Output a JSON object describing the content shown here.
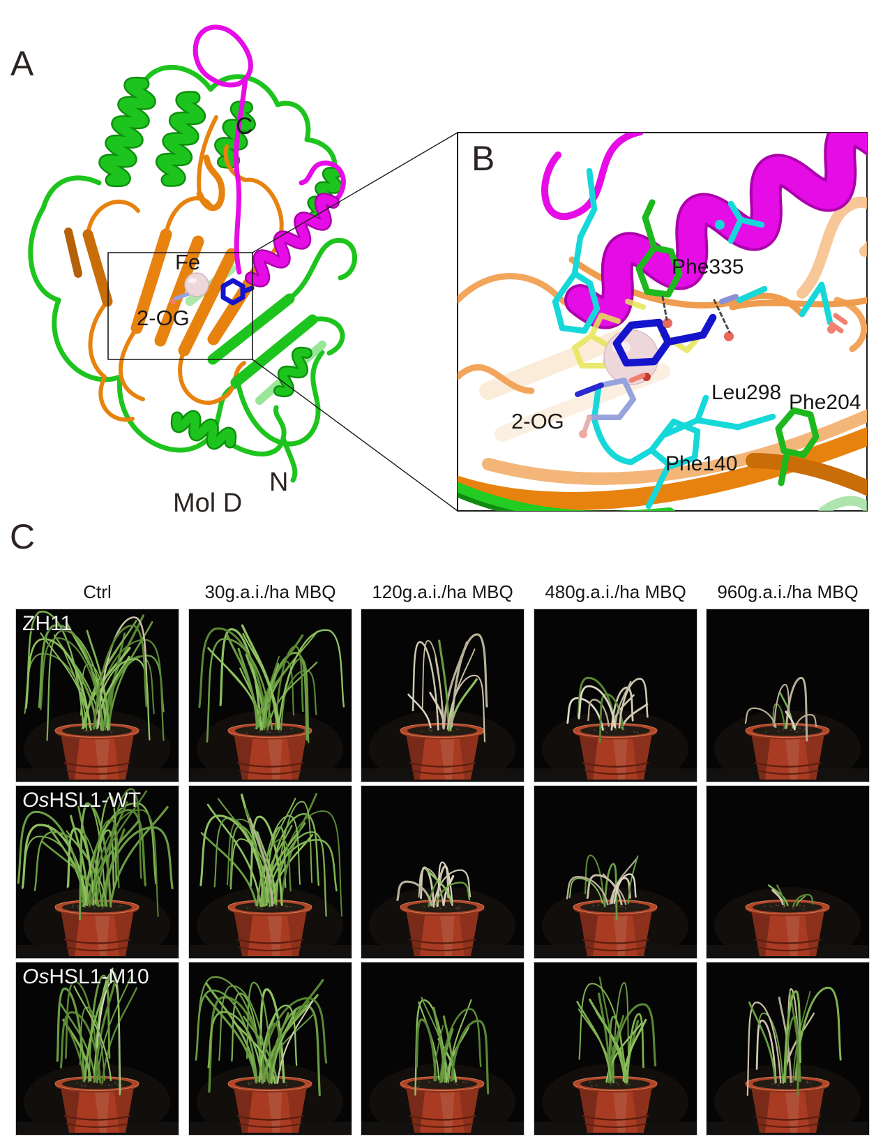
{
  "panelA": {
    "label": "A",
    "terminus_c": "C",
    "terminus_n": "N",
    "fe_label": "Fe",
    "ligand_label": "2-OG",
    "molecule_label": "Mol D"
  },
  "panelB": {
    "label": "B",
    "ligand_label": "2-OG",
    "residues": [
      {
        "name": "Phe335"
      },
      {
        "name": "Leu298"
      },
      {
        "name": "Phe204"
      },
      {
        "name": "Phe140"
      }
    ]
  },
  "panelC": {
    "label": "C",
    "columns": [
      "Ctrl",
      "30g.a.i./ha MBQ",
      "120g.a.i./ha MBQ",
      "480g.a.i./ha MBQ",
      "960g.a.i./ha MBQ"
    ],
    "rows": [
      {
        "name_prefix": "",
        "name": "ZH11",
        "phenotypes": [
          "lush_tall",
          "lush",
          "dead_tall_sparse",
          "dead_short",
          "dead_sparse"
        ]
      },
      {
        "name_prefix": "Os",
        "name": "HSL1-WT",
        "phenotypes": [
          "lush_tall",
          "lush_tall",
          "dead_short",
          "dead_short",
          "bare"
        ]
      },
      {
        "name_prefix": "Os",
        "name": "HSL1-M10",
        "phenotypes": [
          "healthy_tall",
          "lush",
          "healthy_medium",
          "healthy_tall",
          "mixed_pale"
        ]
      }
    ]
  },
  "colors": {
    "chain_green": "#1ec41e",
    "chain_orange": "#e8820e",
    "chain_magenta": "#e50ce5",
    "fe_sphere": "#eed7da",
    "ligand_blue": "#1414cc",
    "stick_cyan": "#17d8d8",
    "stick_yellow": "#e6e655",
    "stick_green": "#1db81d",
    "pot_red": "#a83b22"
  }
}
